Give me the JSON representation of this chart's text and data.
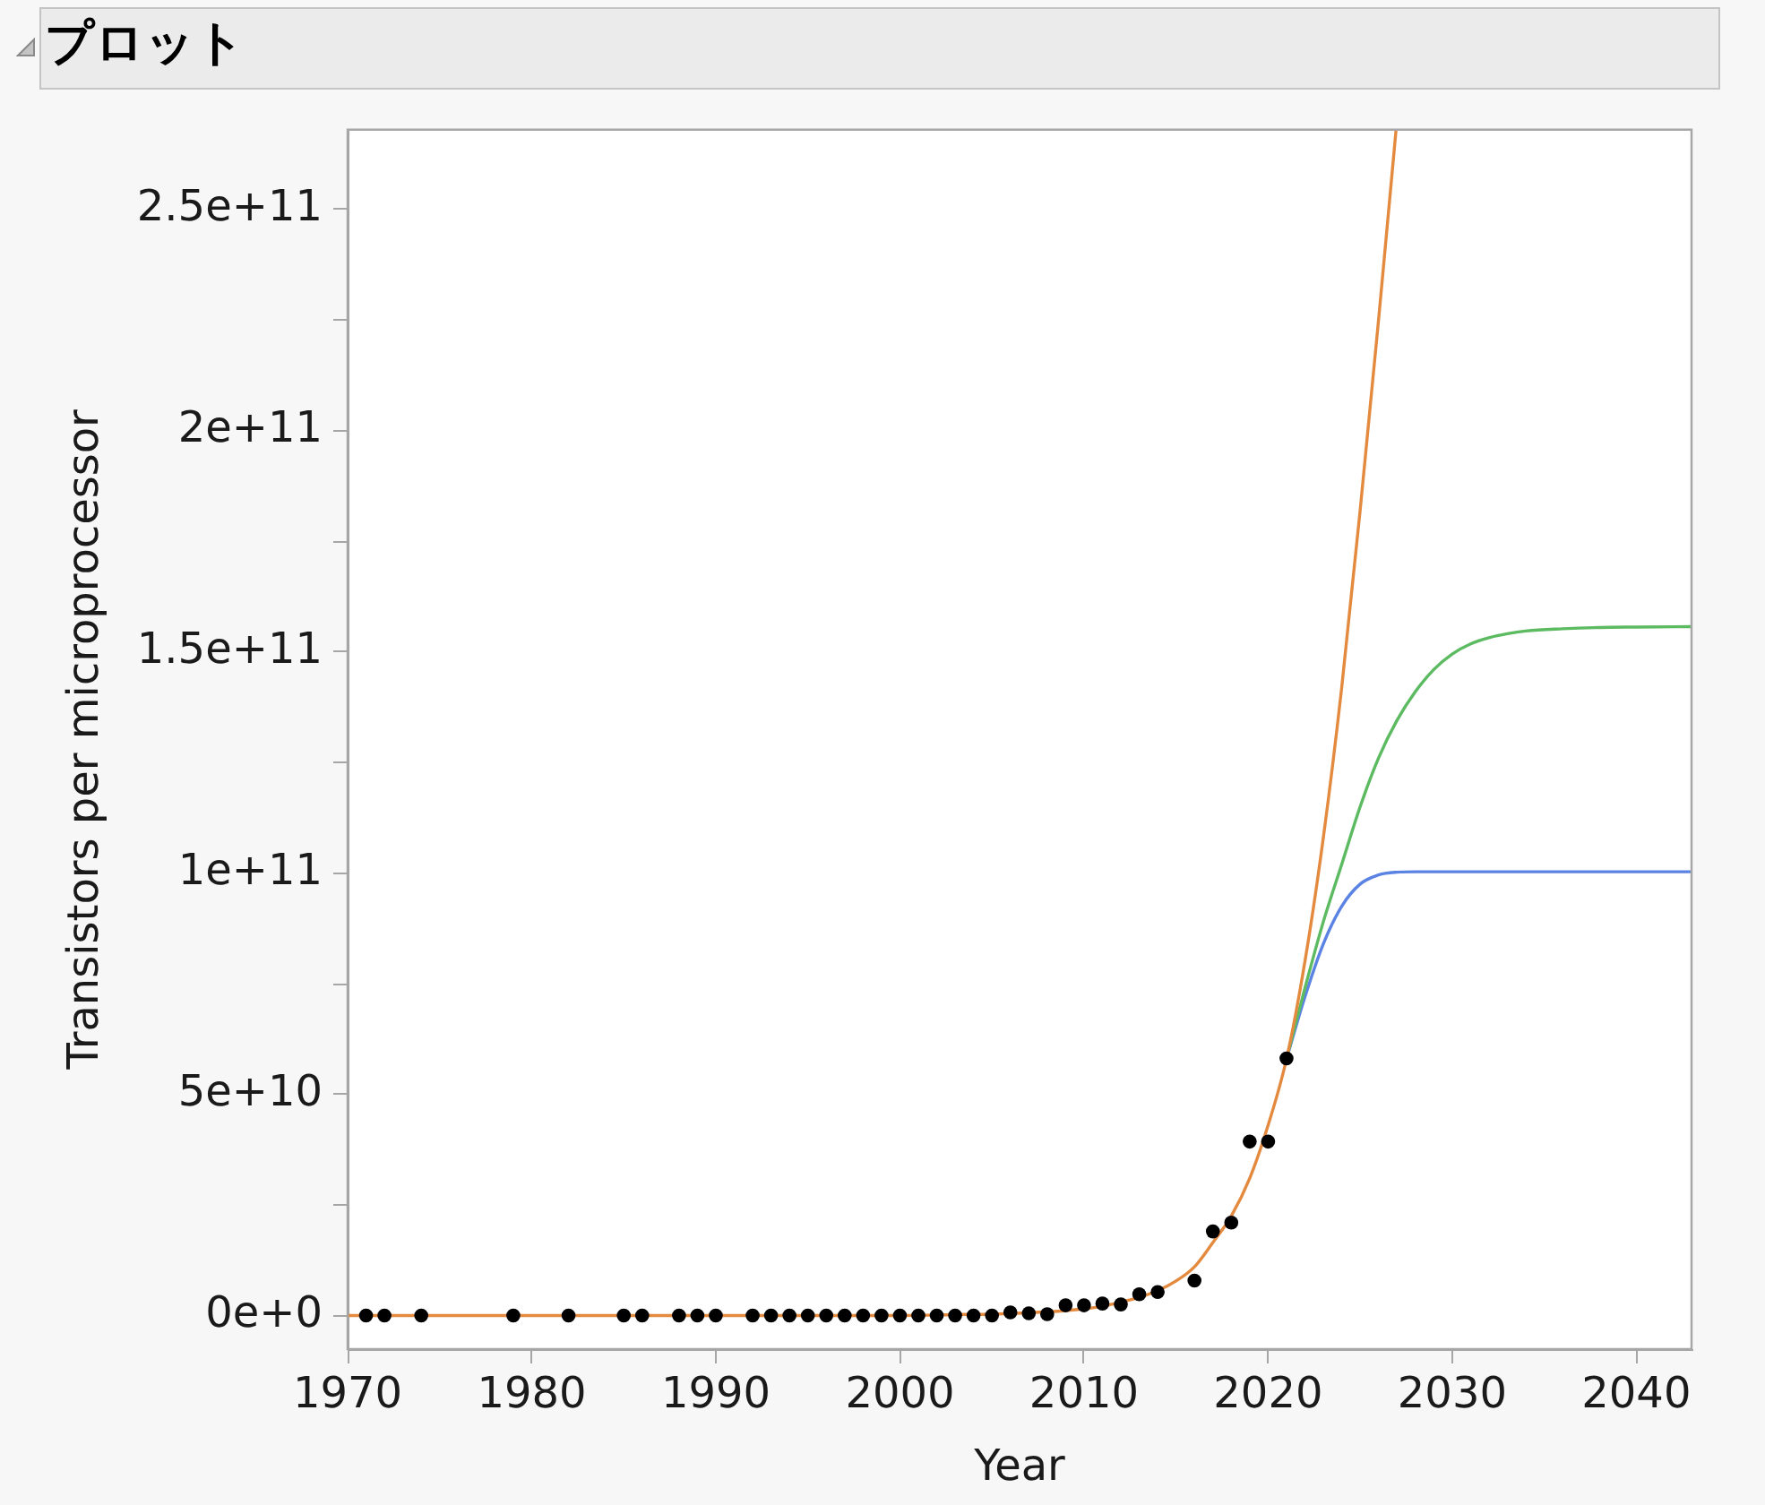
{
  "chart_data": {
    "type": "scatter",
    "title": "プロット",
    "xlabel": "Year",
    "ylabel": "Transistors per microprocessor",
    "xlim": [
      1970,
      2043
    ],
    "xticks": [
      1970,
      1980,
      1990,
      2000,
      2010,
      2020,
      2030,
      2040
    ],
    "ylim": [
      -7600000000,
      268000000000
    ],
    "yticks": [
      {
        "value": 0,
        "label": "0e+0"
      },
      {
        "value": 25000000000,
        "label": null
      },
      {
        "value": 50000000000,
        "label": "5e+10"
      },
      {
        "value": 75000000000,
        "label": null
      },
      {
        "value": 100000000000,
        "label": "1e+11"
      },
      {
        "value": 125000000000,
        "label": null
      },
      {
        "value": 150000000000,
        "label": "1.5e+11"
      },
      {
        "value": 175000000000,
        "label": null
      },
      {
        "value": 200000000000,
        "label": "2e+11"
      },
      {
        "value": 225000000000,
        "label": null
      },
      {
        "value": 250000000000,
        "label": "2.5e+11"
      }
    ],
    "series": [
      {
        "color": "#000000",
        "marker": "circle",
        "x": [
          1971,
          1972,
          1974,
          1979,
          1982,
          1985,
          1986,
          1988,
          1989,
          1990,
          1992,
          1993,
          1994,
          1995,
          1996,
          1997,
          1998,
          1999,
          2000,
          2001,
          2002,
          2003,
          2004,
          2005,
          2006,
          2007,
          2008,
          2009,
          2010,
          2011,
          2012,
          2013,
          2014,
          2016,
          2017,
          2018,
          2019,
          2020,
          2021
        ],
        "values": [
          0,
          0,
          0,
          0,
          0,
          0,
          0,
          0,
          0,
          0,
          0,
          0,
          0,
          0,
          0,
          0,
          0,
          0,
          0,
          0,
          0,
          0,
          0,
          0,
          700000000,
          500000000,
          300000000,
          2300000000,
          2300000000,
          2700000000,
          2500000000,
          4800000000,
          5300000000,
          7900000000,
          19000000000,
          21000000000,
          39300000000,
          39300000000,
          58100000000
        ]
      },
      {
        "type": "line",
        "color": "#e38a3f",
        "x": [
          1970,
          1980,
          1990,
          1995,
          2000,
          2003,
          2005,
          2007,
          2009,
          2010,
          2011,
          2012,
          2013,
          2014,
          2015,
          2016,
          2017,
          2018,
          2019,
          2020,
          2021,
          2022,
          2023,
          2024,
          2025,
          2026,
          2026.95
        ],
        "values": [
          0,
          0,
          0,
          0,
          0,
          200000000,
          300000000,
          600000000,
          1100000000,
          1500000000,
          2100000000,
          3000000000,
          4100000000,
          5600000000,
          7800000000,
          11000000000,
          16500000000,
          22500000000,
          31000000000,
          43000000000,
          58000000000,
          80000000000,
          108000000000,
          142000000000,
          182000000000,
          225000000000,
          268000000000
        ]
      },
      {
        "type": "line",
        "color": "#5cba61",
        "x": [
          2021,
          2022,
          2023,
          2024,
          2025,
          2026,
          2027,
          2028,
          2029,
          2030,
          2031,
          2032,
          2033,
          2034,
          2036,
          2038,
          2040,
          2043
        ],
        "values": [
          58000000000,
          74000000000,
          89000000000,
          102000000000,
          115000000000,
          126000000000,
          134500000000,
          141000000000,
          146000000000,
          149500000000,
          151800000000,
          153200000000,
          154100000000,
          154700000000,
          155200000000,
          155500000000,
          155600000000,
          155700000000
        ]
      },
      {
        "type": "line",
        "color": "#5b83e3",
        "x": [
          2021,
          2022,
          2023,
          2024,
          2025,
          2026,
          2027,
          2028,
          2035,
          2043
        ],
        "values": [
          58000000000,
          72000000000,
          84000000000,
          92500000000,
          97500000000,
          99600000000,
          100200000000,
          100300000000,
          100300000000,
          100300000000
        ]
      }
    ]
  }
}
